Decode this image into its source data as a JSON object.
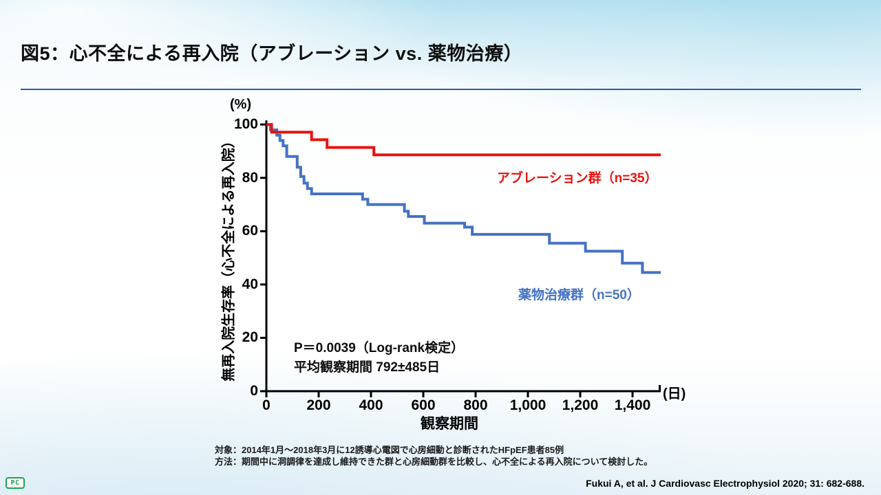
{
  "slide": {
    "title": "図5：心不全による再入院（アブレーション vs. 薬物治療）",
    "title_color": "#0d0d0d",
    "accent_line_color": "#2b5ca8",
    "footnotes": [
      "対象：2014年1月～2018年3月に12誘導心電図で心房細動と診断されたHFpEF患者85例",
      "方法：期間中に洞調律を達成し維持できた群と心房細動群を比較し、心不全による再入院について検討した。"
    ],
    "citation": "Fukui A, et al. J Cardiovasc Electrophysiol 2020; 31: 682-688.",
    "logo_text": "PC",
    "logo_color": "#1fa24a"
  },
  "chart_data": {
    "type": "line",
    "subtype": "kaplan-meier-step",
    "title": "",
    "x_axis_title": "観察期間",
    "y_axis_title": "無再入院生存率（心不全による再入院）",
    "x_unit_label": "(日)",
    "y_unit_label": "(%)",
    "xlim": [
      0,
      1508
    ],
    "ylim": [
      0,
      100
    ],
    "x_ticks": [
      0,
      200,
      400,
      600,
      800,
      1000,
      1200,
      1400
    ],
    "x_tick_labels": [
      "0",
      "200",
      "400",
      "600",
      "800",
      "1,000",
      "1,200",
      "1,400"
    ],
    "y_ticks": [
      0,
      20,
      40,
      60,
      80,
      100
    ],
    "grid": false,
    "axis_color": "#000000",
    "series": [
      {
        "name": "アブレーション群（n=35）",
        "color": "#e8130e",
        "points": [
          [
            0,
            100
          ],
          [
            20,
            97.1
          ],
          [
            173,
            94.3
          ],
          [
            232,
            91.4
          ],
          [
            411,
            88.6
          ],
          [
            1508,
            88.6
          ]
        ]
      },
      {
        "name": "薬物治療群（n=50）",
        "color": "#4472c4",
        "points": [
          [
            0,
            100
          ],
          [
            16,
            98
          ],
          [
            40,
            96
          ],
          [
            52,
            94
          ],
          [
            64,
            92
          ],
          [
            78,
            88
          ],
          [
            118,
            84
          ],
          [
            131,
            80.5
          ],
          [
            144,
            78
          ],
          [
            157,
            76
          ],
          [
            173,
            74
          ],
          [
            368,
            72
          ],
          [
            388,
            70
          ],
          [
            528,
            67.5
          ],
          [
            543,
            65.5
          ],
          [
            604,
            63
          ],
          [
            758,
            61.5
          ],
          [
            787,
            58.8
          ],
          [
            1082,
            55.5
          ],
          [
            1220,
            52.5
          ],
          [
            1361,
            48
          ],
          [
            1438,
            44.5
          ],
          [
            1508,
            44.5
          ]
        ]
      }
    ],
    "annotations": {
      "p_value": "P＝0.0039（Log-rank検定）",
      "follow_up": "平均観察期間 792±485日"
    }
  }
}
